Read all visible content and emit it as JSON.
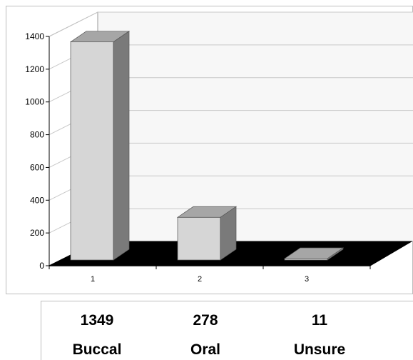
{
  "chart_data": {
    "type": "bar",
    "categories": [
      "1",
      "2",
      "3"
    ],
    "values": [
      1349,
      278,
      11
    ],
    "ylim": [
      0,
      1400
    ],
    "yticks": [
      0,
      200,
      400,
      600,
      800,
      1000,
      1200,
      1400
    ],
    "grid": true,
    "style": "3d-column",
    "colors": {
      "bar_front": "#d6d6d6",
      "bar_top": "#a6a6a6",
      "bar_side": "#7a7a7a",
      "floor": "#000000",
      "grid": "#c8c8c8"
    }
  },
  "table": {
    "values": [
      "1349",
      "278",
      "11"
    ],
    "labels": [
      "Buccal",
      "Oral",
      "Unsure"
    ]
  }
}
